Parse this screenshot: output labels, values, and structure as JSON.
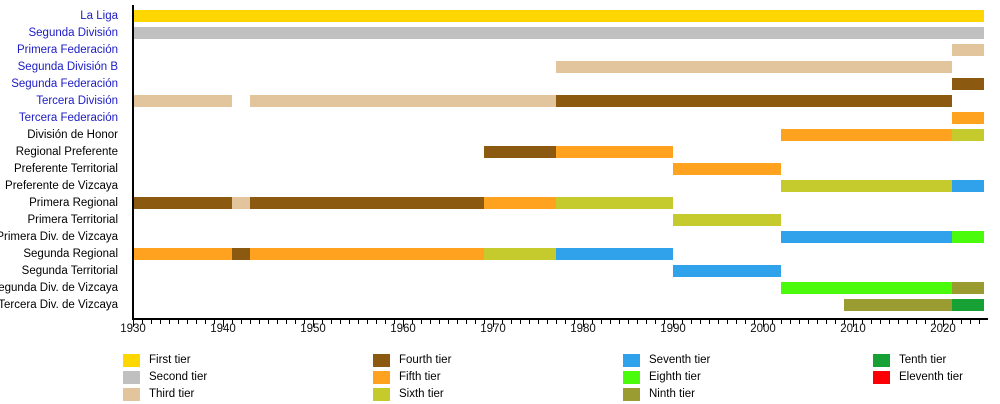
{
  "chart_data": {
    "type": "timeline-gantt",
    "description": "League tier history timeline by competition level",
    "x_axis": {
      "min": 1930,
      "max": 2025,
      "minor_tick_interval": 1,
      "major_ticks": [
        1930,
        1940,
        1950,
        1960,
        1970,
        1980,
        1990,
        2000,
        2010,
        2020
      ]
    },
    "tiers": {
      "1": {
        "label": "First tier",
        "color": "#FFD700"
      },
      "2": {
        "label": "Second tier",
        "color": "#C0C0C0"
      },
      "3": {
        "label": "Third tier",
        "color": "#E2C59C"
      },
      "4": {
        "label": "Fourth tier",
        "color": "#8B5A10"
      },
      "5": {
        "label": "Fifth tier",
        "color": "#FFA21F"
      },
      "6": {
        "label": "Sixth tier",
        "color": "#C5CA2D"
      },
      "7": {
        "label": "Seventh tier",
        "color": "#30A2EC"
      },
      "8": {
        "label": "Eighth tier",
        "color": "#4BFB0C"
      },
      "9": {
        "label": "Ninth tier",
        "color": "#9A9B31"
      },
      "10": {
        "label": "Tenth tier",
        "color": "#17A033"
      },
      "11": {
        "label": "Eleventh tier",
        "color": "#FB0007"
      }
    },
    "legend_order": [
      "1",
      "2",
      "3",
      "4",
      "5",
      "6",
      "7",
      "8",
      "9",
      "10",
      "11"
    ],
    "rows": [
      {
        "label": "La Liga",
        "link": true,
        "segments": [
          {
            "from": 1930,
            "to": 2024.5,
            "tier": "1"
          }
        ]
      },
      {
        "label": "Segunda División",
        "link": true,
        "segments": [
          {
            "from": 1930,
            "to": 2024.5,
            "tier": "2"
          }
        ]
      },
      {
        "label": "Primera Federación",
        "link": true,
        "segments": [
          {
            "from": 2021,
            "to": 2024.5,
            "tier": "3"
          }
        ]
      },
      {
        "label": "Segunda División B",
        "link": true,
        "segments": [
          {
            "from": 1977,
            "to": 2021,
            "tier": "3"
          }
        ]
      },
      {
        "label": "Segunda Federación",
        "link": true,
        "segments": [
          {
            "from": 2021,
            "to": 2024.5,
            "tier": "4"
          }
        ]
      },
      {
        "label": "Tercera División",
        "link": true,
        "segments": [
          {
            "from": 1930,
            "to": 1941,
            "tier": "3"
          },
          {
            "from": 1943,
            "to": 1977,
            "tier": "3"
          },
          {
            "from": 1977,
            "to": 2021,
            "tier": "4"
          }
        ]
      },
      {
        "label": "Tercera Federación",
        "link": true,
        "segments": [
          {
            "from": 2021,
            "to": 2024.5,
            "tier": "5"
          }
        ]
      },
      {
        "label": "División de Honor",
        "link": false,
        "segments": [
          {
            "from": 2002,
            "to": 2021,
            "tier": "5"
          },
          {
            "from": 2021,
            "to": 2024.5,
            "tier": "6"
          }
        ]
      },
      {
        "label": "Regional Preferente",
        "link": false,
        "segments": [
          {
            "from": 1969,
            "to": 1977,
            "tier": "4"
          },
          {
            "from": 1977,
            "to": 1990,
            "tier": "5"
          }
        ]
      },
      {
        "label": "Preferente Territorial",
        "link": false,
        "segments": [
          {
            "from": 1990,
            "to": 2002,
            "tier": "5"
          }
        ]
      },
      {
        "label": "Preferente de Vizcaya",
        "link": false,
        "segments": [
          {
            "from": 2002,
            "to": 2021,
            "tier": "6"
          },
          {
            "from": 2021,
            "to": 2024.5,
            "tier": "7"
          }
        ]
      },
      {
        "label": "Primera Regional",
        "link": false,
        "segments": [
          {
            "from": 1930,
            "to": 1941,
            "tier": "4"
          },
          {
            "from": 1941,
            "to": 1943,
            "tier": "3"
          },
          {
            "from": 1943,
            "to": 1969,
            "tier": "4"
          },
          {
            "from": 1969,
            "to": 1977,
            "tier": "5"
          },
          {
            "from": 1977,
            "to": 1990,
            "tier": "6"
          }
        ]
      },
      {
        "label": "Primera Territorial",
        "link": false,
        "segments": [
          {
            "from": 1990,
            "to": 2002,
            "tier": "6"
          }
        ]
      },
      {
        "label": "Primera Div. de Vizcaya",
        "link": false,
        "segments": [
          {
            "from": 2002,
            "to": 2021,
            "tier": "7"
          },
          {
            "from": 2021,
            "to": 2024.5,
            "tier": "8"
          }
        ]
      },
      {
        "label": "Segunda Regional",
        "link": false,
        "segments": [
          {
            "from": 1930,
            "to": 1941,
            "tier": "5"
          },
          {
            "from": 1941,
            "to": 1943,
            "tier": "4"
          },
          {
            "from": 1943,
            "to": 1969,
            "tier": "5"
          },
          {
            "from": 1969,
            "to": 1977,
            "tier": "6"
          },
          {
            "from": 1977,
            "to": 1990,
            "tier": "7"
          }
        ]
      },
      {
        "label": "Segunda Territorial",
        "link": false,
        "segments": [
          {
            "from": 1990,
            "to": 2002,
            "tier": "7"
          }
        ]
      },
      {
        "label": "Segunda Div. de Vizcaya",
        "link": false,
        "segments": [
          {
            "from": 2002,
            "to": 2021,
            "tier": "8"
          },
          {
            "from": 2021,
            "to": 2024.5,
            "tier": "9"
          }
        ]
      },
      {
        "label": "Tercera Div. de Vizcaya",
        "link": false,
        "segments": [
          {
            "from": 2009,
            "to": 2021,
            "tier": "9"
          },
          {
            "from": 2021,
            "to": 2024.5,
            "tier": "10"
          }
        ]
      }
    ]
  }
}
